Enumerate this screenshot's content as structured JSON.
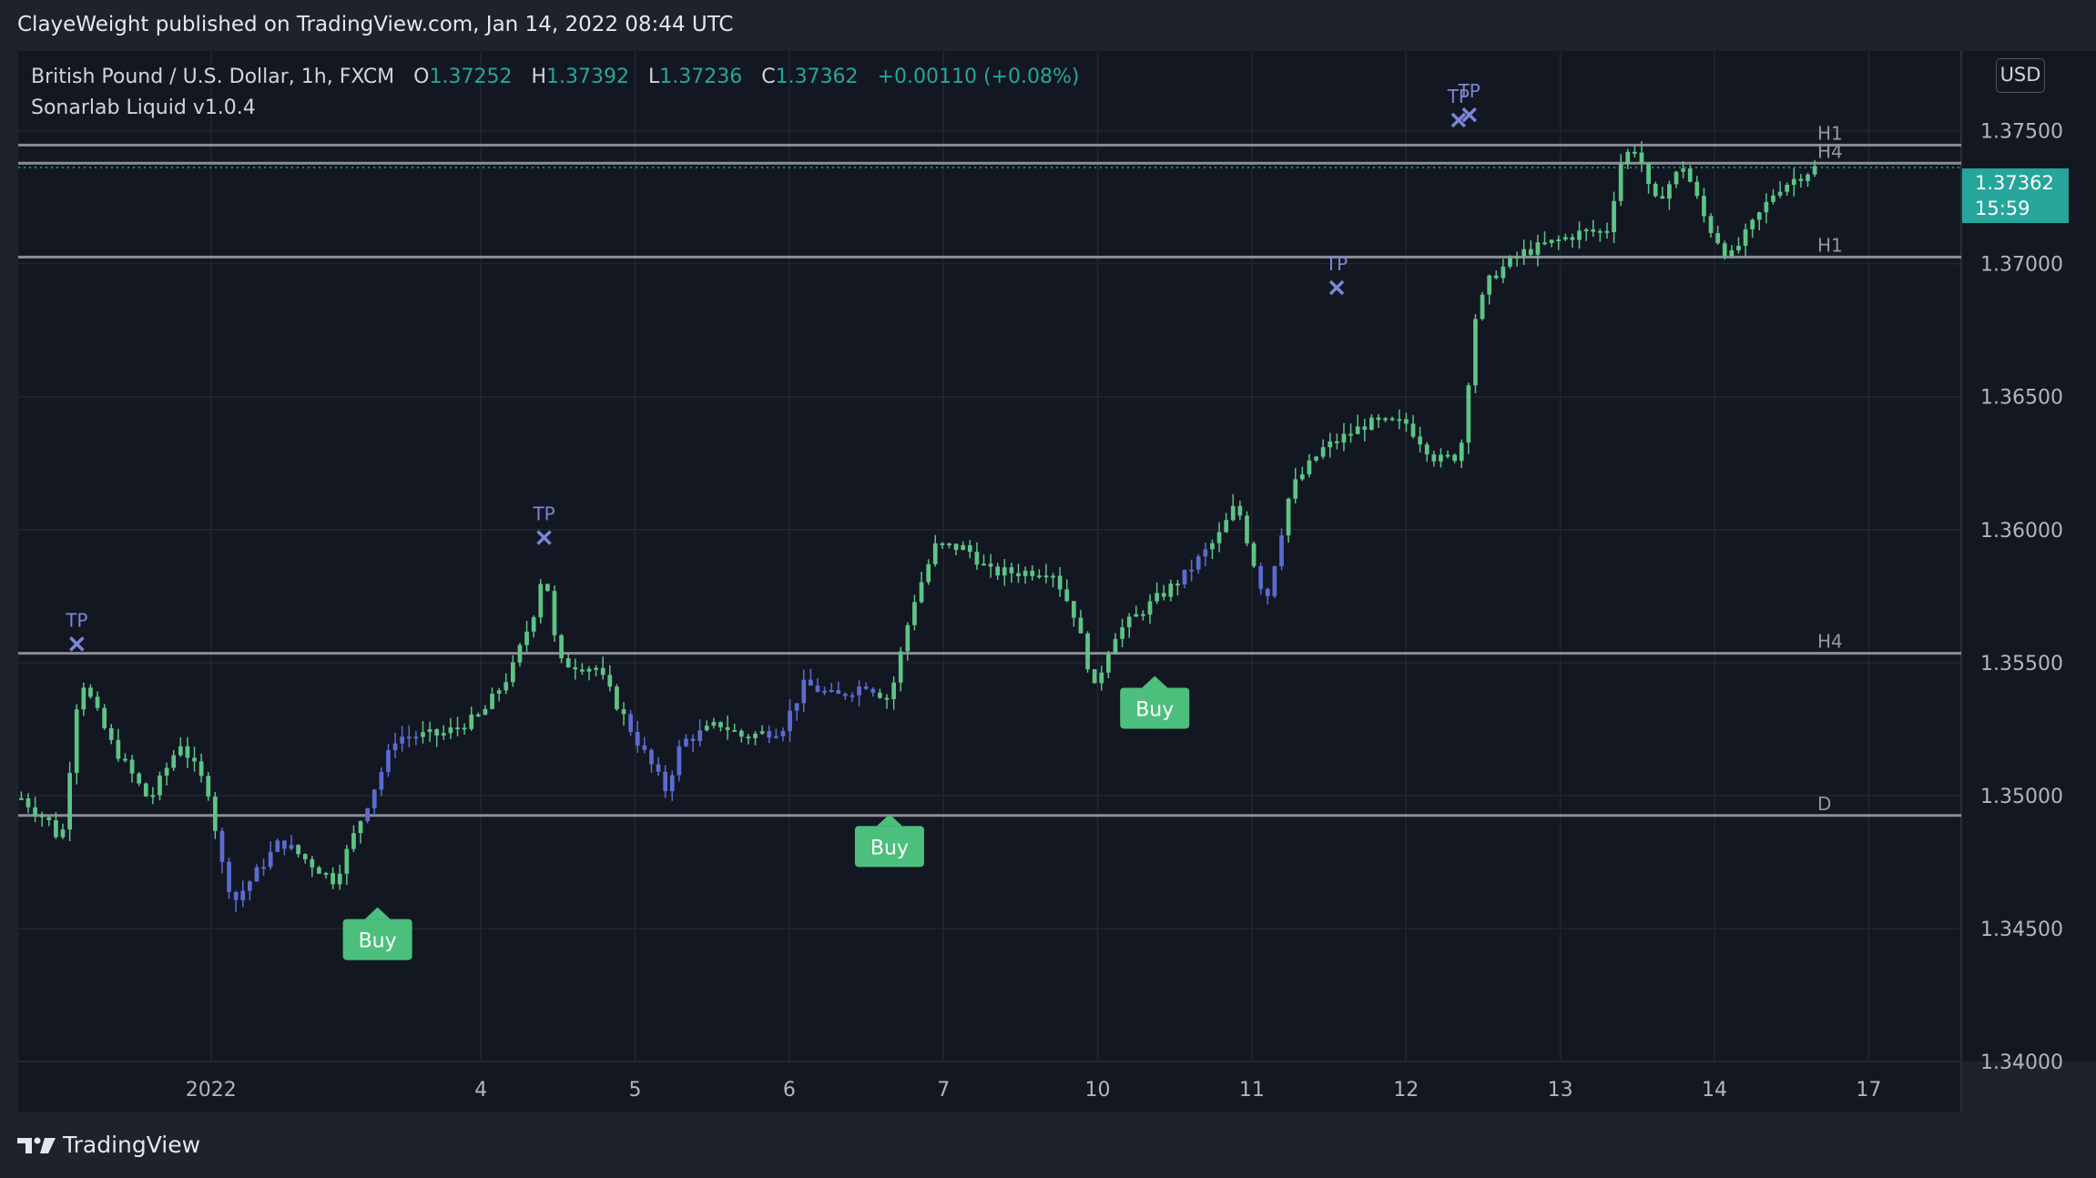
{
  "publish_line": "ClayeWeight published on TradingView.com, Jan 14, 2022 08:44 UTC",
  "legend": {
    "symbol": "British Pound / U.S. Dollar, 1h, FXCM",
    "o_label": "O",
    "o_value": "1.37252",
    "h_label": "H",
    "h_value": "1.37392",
    "l_label": "L",
    "l_value": "1.37236",
    "c_label": "C",
    "c_value": "1.37362",
    "change": "+0.00110 (+0.08%)",
    "indicator": "Sonarlab Liquid v1.0.4"
  },
  "currency_button": "USD",
  "last_price": {
    "value": "1.37362",
    "countdown": "15:59"
  },
  "brand": "TradingView",
  "colors": {
    "background": "#131722",
    "up": "#5dc486",
    "down": "#5c6bd1",
    "level_line": "#8a8d96",
    "tp_marker": "#7b86d6",
    "buy_label": "#4cbf7d",
    "last_price": "#26a69a"
  },
  "chart_data": {
    "type": "candlestick",
    "y_axis": {
      "min": 1.34,
      "max": 1.378,
      "ticks": [
        {
          "value": 1.375,
          "label": "1.37500"
        },
        {
          "value": 1.37,
          "label": "1.37000"
        },
        {
          "value": 1.365,
          "label": "1.36500"
        },
        {
          "value": 1.36,
          "label": "1.36000"
        },
        {
          "value": 1.355,
          "label": "1.35500"
        },
        {
          "value": 1.35,
          "label": "1.35000"
        },
        {
          "value": 1.345,
          "label": "1.34500"
        },
        {
          "value": 1.34,
          "label": "1.34000"
        }
      ]
    },
    "x_axis": {
      "ticks": [
        {
          "value": 1.25,
          "label": "2022"
        },
        {
          "value": 3.0,
          "label": "4"
        },
        {
          "value": 4.0,
          "label": "5"
        },
        {
          "value": 5.0,
          "label": "6"
        },
        {
          "value": 6.0,
          "label": "7"
        },
        {
          "value": 7.0,
          "label": "10"
        },
        {
          "value": 8.0,
          "label": "11"
        },
        {
          "value": 9.0,
          "label": "12"
        },
        {
          "value": 10.0,
          "label": "13"
        },
        {
          "value": 11.0,
          "label": "14"
        },
        {
          "value": 12.0,
          "label": "17"
        }
      ]
    },
    "levels": [
      {
        "value": 1.37446,
        "label": "H1"
      },
      {
        "value": 1.37378,
        "label": "H4"
      },
      {
        "value": 1.37025,
        "label": "H1"
      },
      {
        "value": 1.35535,
        "label": "H4"
      },
      {
        "value": 1.34925,
        "label": "D"
      }
    ],
    "tp_markers": [
      {
        "x": 0.38,
        "y": 1.3557,
        "label": "TP"
      },
      {
        "x": 3.41,
        "y": 1.3597,
        "label": "TP"
      },
      {
        "x": 8.55,
        "y": 1.3691,
        "label": "TP"
      },
      {
        "x": 9.34,
        "y": 1.3754,
        "label": "TP"
      },
      {
        "x": 9.41,
        "y": 1.3756,
        "label": "TP"
      }
    ],
    "buy_signals": [
      {
        "x": 2.33,
        "y": 1.3458,
        "label": "Buy"
      },
      {
        "x": 5.65,
        "y": 1.3493,
        "label": "Buy"
      },
      {
        "x": 7.37,
        "y": 1.3545,
        "label": "Buy"
      }
    ],
    "series_path": [
      {
        "x": 0.0,
        "y": 1.35
      },
      {
        "x": 0.2,
        "y": 1.349
      },
      {
        "x": 0.28,
        "y": 1.3482
      },
      {
        "x": 0.4,
        "y": 1.3545
      },
      {
        "x": 0.6,
        "y": 1.352
      },
      {
        "x": 0.85,
        "y": 1.3498
      },
      {
        "x": 1.05,
        "y": 1.352
      },
      {
        "x": 1.25,
        "y": 1.35
      },
      {
        "x": 1.3,
        "y": 1.3478
      },
      {
        "x": 1.4,
        "y": 1.346
      },
      {
        "x": 1.7,
        "y": 1.3483
      },
      {
        "x": 2.05,
        "y": 1.3468
      },
      {
        "x": 2.25,
        "y": 1.3495
      },
      {
        "x": 2.45,
        "y": 1.3522
      },
      {
        "x": 2.75,
        "y": 1.3523
      },
      {
        "x": 3.0,
        "y": 1.353
      },
      {
        "x": 3.2,
        "y": 1.3547
      },
      {
        "x": 3.35,
        "y": 1.357
      },
      {
        "x": 3.41,
        "y": 1.3587
      },
      {
        "x": 3.5,
        "y": 1.355
      },
      {
        "x": 3.75,
        "y": 1.3548
      },
      {
        "x": 4.0,
        "y": 1.3522
      },
      {
        "x": 4.2,
        "y": 1.3502
      },
      {
        "x": 4.3,
        "y": 1.352
      },
      {
        "x": 4.55,
        "y": 1.3527
      },
      {
        "x": 4.7,
        "y": 1.3522
      },
      {
        "x": 4.95,
        "y": 1.3525
      },
      {
        "x": 5.1,
        "y": 1.3542
      },
      {
        "x": 5.3,
        "y": 1.3537
      },
      {
        "x": 5.5,
        "y": 1.3542
      },
      {
        "x": 5.65,
        "y": 1.3536
      },
      {
        "x": 5.8,
        "y": 1.3572
      },
      {
        "x": 5.95,
        "y": 1.3594
      },
      {
        "x": 6.15,
        "y": 1.3593
      },
      {
        "x": 6.3,
        "y": 1.3584
      },
      {
        "x": 6.5,
        "y": 1.3584
      },
      {
        "x": 6.7,
        "y": 1.3585
      },
      {
        "x": 6.85,
        "y": 1.3568
      },
      {
        "x": 6.98,
        "y": 1.354
      },
      {
        "x": 7.1,
        "y": 1.356
      },
      {
        "x": 7.3,
        "y": 1.357
      },
      {
        "x": 7.55,
        "y": 1.3582
      },
      {
        "x": 7.78,
        "y": 1.3597
      },
      {
        "x": 7.9,
        "y": 1.361
      },
      {
        "x": 8.05,
        "y": 1.358
      },
      {
        "x": 8.1,
        "y": 1.3575
      },
      {
        "x": 8.25,
        "y": 1.3615
      },
      {
        "x": 8.45,
        "y": 1.363
      },
      {
        "x": 8.75,
        "y": 1.364
      },
      {
        "x": 9.0,
        "y": 1.364
      },
      {
        "x": 9.2,
        "y": 1.3626
      },
      {
        "x": 9.35,
        "y": 1.3628
      },
      {
        "x": 9.45,
        "y": 1.368
      },
      {
        "x": 9.55,
        "y": 1.3695
      },
      {
        "x": 9.75,
        "y": 1.3704
      },
      {
        "x": 9.9,
        "y": 1.3707
      },
      {
        "x": 10.15,
        "y": 1.3712
      },
      {
        "x": 10.3,
        "y": 1.3712
      },
      {
        "x": 10.4,
        "y": 1.374
      },
      {
        "x": 10.5,
        "y": 1.3744
      },
      {
        "x": 10.6,
        "y": 1.3722
      },
      {
        "x": 10.8,
        "y": 1.3737
      },
      {
        "x": 10.95,
        "y": 1.3715
      },
      {
        "x": 11.1,
        "y": 1.3702
      },
      {
        "x": 11.25,
        "y": 1.3715
      },
      {
        "x": 11.4,
        "y": 1.3728
      },
      {
        "x": 11.55,
        "y": 1.3733
      },
      {
        "x": 11.65,
        "y": 1.3736
      }
    ],
    "down_segments": [
      [
        1.3,
        1.78
      ],
      [
        2.25,
        2.6
      ],
      [
        3.95,
        4.45
      ],
      [
        4.85,
        5.55
      ],
      [
        7.55,
        7.7
      ],
      [
        8.05,
        8.2
      ]
    ]
  }
}
